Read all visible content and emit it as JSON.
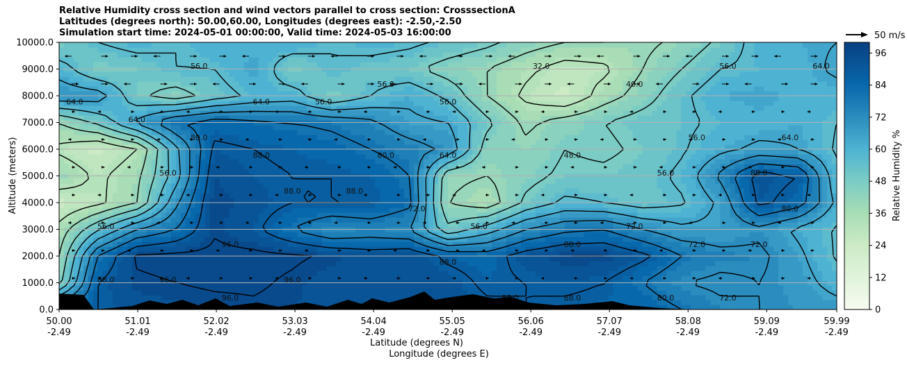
{
  "title": {
    "line1": "Relative Humidity cross section and wind vectors parallel to cross section: CrosssectionA",
    "line2": "Latitudes (degrees north): 50.00,60.00, Longitudes (degrees east): -2.50,-2.50",
    "line3": "Simulation start time: 2024-05-01 00:00:00, Valid time: 2024-05-03 16:00:00"
  },
  "wind_key": {
    "label": "50 m/s",
    "speed": 50
  },
  "chart_data": {
    "type": "heatmap",
    "ylabel": "Altitude (meters)",
    "xlabel_lat": "Latitude (degrees N)",
    "xlabel_lon": "Longitude (degrees E)",
    "xlim": [
      50.0,
      59.99
    ],
    "ylim": [
      0,
      10000
    ],
    "grid": "horizontal",
    "y_ticks": [
      "0.0",
      "1000.0",
      "2000.0",
      "3000.0",
      "4000.0",
      "5000.0",
      "6000.0",
      "7000.0",
      "8000.0",
      "9000.0",
      "10000.0"
    ],
    "x_ticks": [
      {
        "lat": "50.00",
        "lon": "-2.49"
      },
      {
        "lat": "51.01",
        "lon": "-2.49"
      },
      {
        "lat": "52.02",
        "lon": "-2.49"
      },
      {
        "lat": "53.03",
        "lon": "-2.49"
      },
      {
        "lat": "54.04",
        "lon": "-2.49"
      },
      {
        "lat": "55.05",
        "lon": "-2.49"
      },
      {
        "lat": "56.06",
        "lon": "-2.49"
      },
      {
        "lat": "57.07",
        "lon": "-2.49"
      },
      {
        "lat": "58.08",
        "lon": "-2.49"
      },
      {
        "lat": "59.09",
        "lon": "-2.49"
      },
      {
        "lat": "59.99",
        "lon": "-2.49"
      }
    ],
    "colorbar": {
      "label": "Relative Humidity %",
      "ticks": [
        "0",
        "12",
        "24",
        "36",
        "48",
        "60",
        "72",
        "84",
        "96"
      ],
      "range": [
        0,
        100
      ],
      "colormap": "GnBu"
    },
    "rh_field": {
      "note_units": "percent",
      "altitudes_m": [
        0,
        1000,
        2000,
        3000,
        4000,
        5000,
        6000,
        7000,
        8000,
        9000,
        10000
      ],
      "latitudes": [
        50.0,
        50.5,
        51.0,
        51.5,
        52.0,
        52.5,
        53.0,
        53.5,
        54.0,
        54.5,
        55.0,
        55.5,
        56.0,
        56.5,
        57.0,
        57.5,
        58.0,
        58.5,
        59.0,
        59.5,
        59.99
      ],
      "values": [
        [
          85,
          88,
          92,
          93,
          94,
          95,
          94,
          92,
          90,
          91,
          93,
          90,
          88,
          86,
          85,
          86,
          80,
          74,
          72,
          70,
          68
        ],
        [
          45,
          88,
          95,
          96,
          97,
          97,
          95,
          92,
          90,
          93,
          92,
          86,
          88,
          90,
          88,
          80,
          72,
          70,
          72,
          68,
          60
        ],
        [
          40,
          80,
          97,
          98,
          98,
          98,
          97,
          95,
          92,
          94,
          86,
          84,
          92,
          96,
          96,
          90,
          80,
          75,
          74,
          66,
          55
        ],
        [
          35,
          55,
          72,
          80,
          95,
          90,
          80,
          72,
          75,
          72,
          50,
          60,
          72,
          78,
          80,
          72,
          66,
          66,
          70,
          62,
          55
        ],
        [
          24,
          30,
          40,
          70,
          96,
          92,
          88,
          88,
          88,
          82,
          40,
          35,
          50,
          58,
          56,
          52,
          55,
          66,
          90,
          84,
          62
        ],
        [
          40,
          30,
          38,
          60,
          94,
          90,
          88,
          88,
          86,
          80,
          42,
          40,
          45,
          50,
          50,
          52,
          58,
          74,
          92,
          88,
          58
        ],
        [
          30,
          24,
          32,
          62,
          90,
          88,
          86,
          84,
          80,
          76,
          70,
          44,
          42,
          48,
          46,
          50,
          55,
          62,
          66,
          64,
          55
        ],
        [
          40,
          50,
          66,
          80,
          84,
          82,
          80,
          78,
          74,
          66,
          64,
          50,
          38,
          44,
          48,
          52,
          54,
          58,
          60,
          62,
          56
        ],
        [
          70,
          68,
          50,
          44,
          52,
          58,
          60,
          48,
          56,
          62,
          54,
          40,
          30,
          24,
          36,
          44,
          54,
          62,
          64,
          60,
          60
        ],
        [
          60,
          48,
          50,
          56,
          56,
          64,
          48,
          56,
          52,
          50,
          44,
          40,
          34,
          28,
          30,
          40,
          48,
          56,
          58,
          60,
          66
        ],
        [
          48,
          56,
          60,
          56,
          62,
          60,
          62,
          56,
          60,
          58,
          54,
          50,
          44,
          40,
          40,
          38,
          42,
          50,
          60,
          62,
          64
        ]
      ],
      "contour_labels": [
        "24.0",
        "32.0",
        "40.0",
        "48.0",
        "56.0",
        "64.0",
        "72.0",
        "80.0",
        "88.0",
        "96.0"
      ]
    }
  }
}
